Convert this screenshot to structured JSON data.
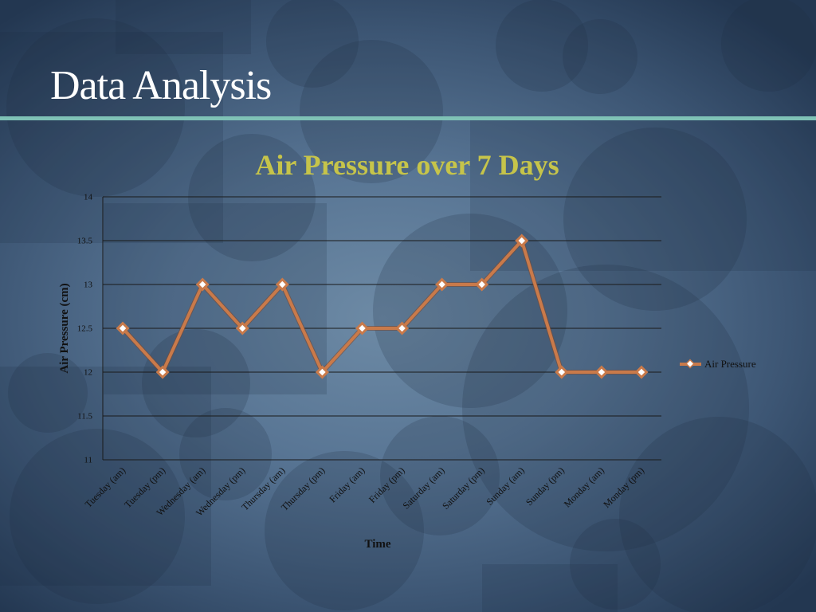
{
  "slide": {
    "title": "Data Analysis"
  },
  "chart_data": {
    "type": "line",
    "title": "Air Pressure over  7 Days",
    "xlabel": "Time",
    "ylabel": "Air Pressure (cm)",
    "ylim": [
      11,
      14
    ],
    "yticks": [
      11,
      11.5,
      12,
      12.5,
      13,
      13.5,
      14
    ],
    "ytick_labels": [
      "11",
      "11.5",
      "12",
      "12.5",
      "13",
      "13.5",
      "14"
    ],
    "grid": true,
    "legend_position": "right",
    "categories": [
      "Tuesday (am)",
      "Tuesday (pm)",
      "Wednesday (am)",
      "Wednesday (pm)",
      "Thursday (am)",
      "Thursday (pm)",
      "Friday (am)",
      "Friday (pm)",
      "Saturday (am)",
      "Saturday (pm)",
      "Sunday (am)",
      "Sunday (pm)",
      "Monday (am)",
      "Monday (pm)"
    ],
    "series": [
      {
        "name": "Air Pressure",
        "values": [
          12.5,
          12,
          13,
          12.5,
          13,
          12,
          12.5,
          12.5,
          13,
          13,
          13.5,
          12,
          12,
          12
        ],
        "color": "#c97a4a"
      }
    ],
    "colors": {
      "title": "#c6c44a",
      "grid": "#1a1a1a"
    }
  }
}
